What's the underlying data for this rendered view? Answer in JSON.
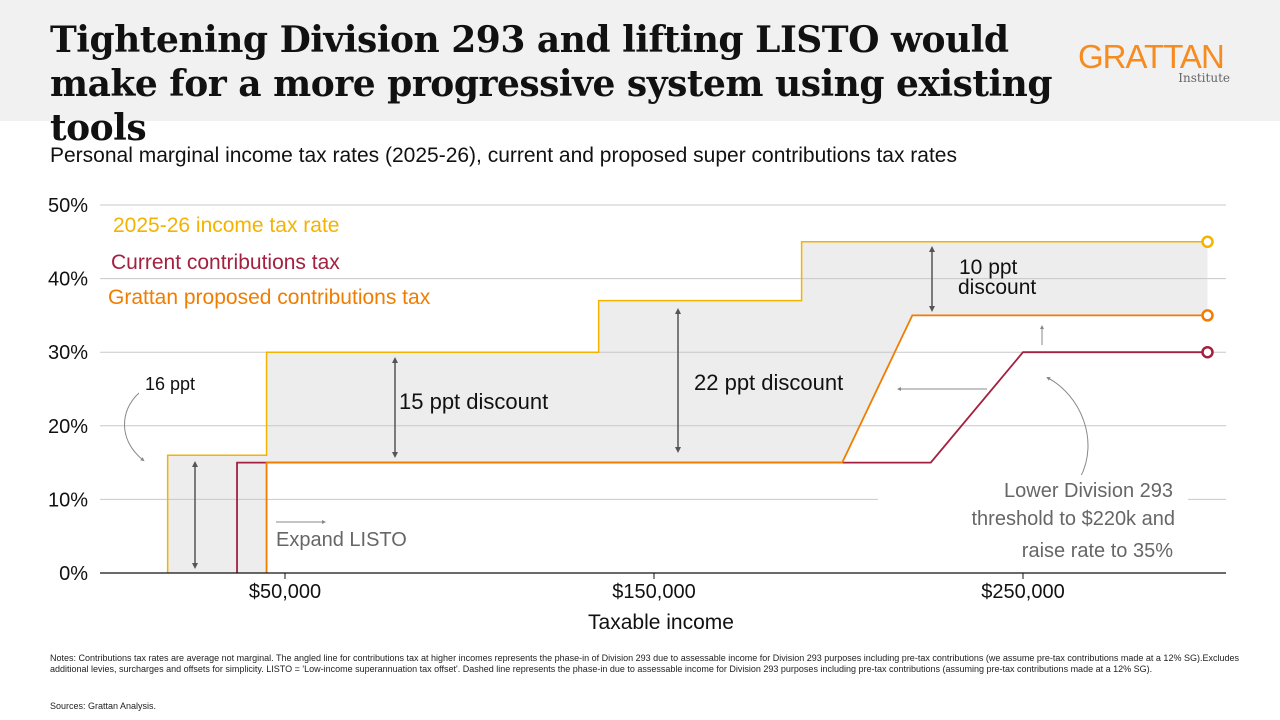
{
  "header": {
    "title": "Tightening Division 293 and lifting LISTO would make for a more progressive system using existing tools",
    "logo_main": "GRATTAN",
    "logo_sub": "Institute"
  },
  "subtitle": "Personal marginal income tax rates (2025-26), current and proposed super contributions tax rates",
  "chart_data": {
    "type": "line",
    "step": true,
    "xlabel": "Taxable income",
    "ylabel": "",
    "xlim": [
      0,
      306000
    ],
    "ylim": [
      0,
      50
    ],
    "grid": true,
    "x_ticks": [
      50000,
      150000,
      250000
    ],
    "x_tick_labels": [
      "$50,000",
      "$150,000",
      "$250,000"
    ],
    "y_ticks": [
      0,
      10,
      20,
      30,
      40,
      50
    ],
    "y_tick_labels": [
      "0%",
      "10%",
      "20%",
      "30%",
      "40%",
      "50%"
    ],
    "legend_placement": "top-left",
    "series": [
      {
        "name": "2025-26 income tax rate",
        "color": "#F3B300",
        "points": [
          [
            18200,
            0
          ],
          [
            18200,
            16
          ],
          [
            45000,
            16
          ],
          [
            45000,
            30
          ],
          [
            135000,
            30
          ],
          [
            135000,
            37
          ],
          [
            190000,
            37
          ],
          [
            190000,
            45
          ],
          [
            300000,
            45
          ]
        ]
      },
      {
        "name": "Current contributions tax",
        "color": "#A3203F",
        "points": [
          [
            37000,
            0
          ],
          [
            37000,
            15
          ],
          [
            225000,
            15
          ],
          [
            250000,
            30
          ],
          [
            300000,
            30
          ]
        ]
      },
      {
        "name": "Grattan proposed contributions tax",
        "color": "#F07D00",
        "points": [
          [
            45000,
            0
          ],
          [
            45000,
            15
          ],
          [
            201000,
            15
          ],
          [
            220000,
            35
          ],
          [
            300000,
            35
          ]
        ]
      }
    ],
    "annotations": {
      "a16": "16 ppt",
      "a15": "15 ppt discount",
      "a22": "22 ppt discount",
      "a10_1": "10 ppt",
      "a10_2": "discount",
      "listo": "Expand LISTO",
      "div293_1": "Lower Division 293",
      "div293_2": "threshold to $220k and",
      "div293_3": "raise rate to 35%"
    },
    "shading_color": "#EDEDED"
  },
  "notes": "Notes: Contributions tax rates are average not marginal. The angled line for contributions tax at higher incomes represents the phase-in of Division 293 due to assessable income for Division 293 purposes including pre-tax contributions (we assume pre-tax contributions made at a 12% SG).Excludes additional levies, surcharges and offsets for simplicity. LISTO = 'Low-income superannuation tax offset'. Dashed line represents the phase-in due to assessable income for Division 293 purposes including pre-tax contributions (assuming pre-tax contributions made at a 12% SG).",
  "sources": "Sources: Grattan Analysis."
}
